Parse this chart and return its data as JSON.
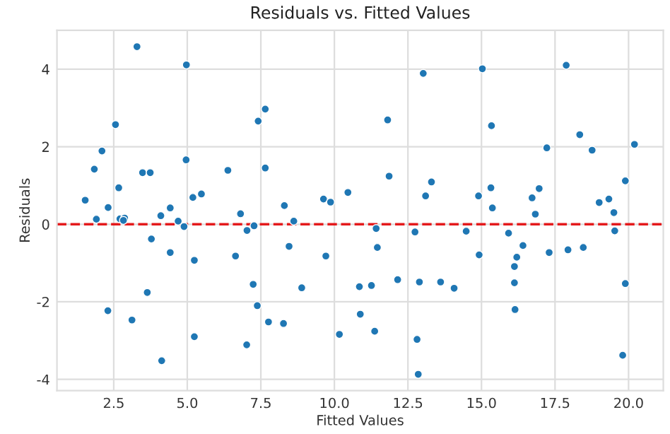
{
  "chart_data": {
    "type": "scatter",
    "title": "Residuals vs. Fitted Values",
    "xlabel": "Fitted Values",
    "ylabel": "Residuals",
    "xlim": [
      0.57,
      21.18
    ],
    "ylim": [
      -4.29,
      5.0
    ],
    "xticks": [
      {
        "value": 2.5,
        "label": "2.5"
      },
      {
        "value": 5,
        "label": "5.0"
      },
      {
        "value": 7.5,
        "label": "7.5"
      },
      {
        "value": 10,
        "label": "10.0"
      },
      {
        "value": 12.5,
        "label": "12.5"
      },
      {
        "value": 15,
        "label": "15.0"
      },
      {
        "value": 17.5,
        "label": "17.5"
      },
      {
        "value": 20,
        "label": "20.0"
      }
    ],
    "yticks": [
      -4,
      -2,
      0,
      2,
      4
    ],
    "grid": true,
    "marker": "circle",
    "ref_lines": [
      {
        "axis": "y",
        "value": 0,
        "label": null,
        "color": "#e41a1c",
        "line_style": "dashed"
      }
    ],
    "series": [
      {
        "color": "#1f77b4",
        "x": [
          1.53,
          1.84,
          1.91,
          2.1,
          2.31,
          2.3,
          2.56,
          2.67,
          2.71,
          2.87,
          2.83,
          3.12,
          3.29,
          3.48,
          3.74,
          3.64,
          3.78,
          4.1,
          4.13,
          4.42,
          4.42,
          4.69,
          4.89,
          4.97,
          4.96,
          5.19,
          5.48,
          5.24,
          5.24,
          6.38,
          6.64,
          6.81,
          7.03,
          7.02,
          7.27,
          7.24,
          7.41,
          7.65,
          7.65,
          7.38,
          7.76,
          8.27,
          8.3,
          8.46,
          8.62,
          8.89,
          9.63,
          9.87,
          9.71,
          10.17,
          10.46,
          10.85,
          10.88,
          11.26,
          11.37,
          11.42,
          11.46,
          11.81,
          11.86,
          12.15,
          12.74,
          12.81,
          12.85,
          12.89,
          13.02,
          13.1,
          13.3,
          13.61,
          14.07,
          14.48,
          14.9,
          14.92,
          15.03,
          15.32,
          15.34,
          15.37,
          15.92,
          16.12,
          16.12,
          16.14,
          16.2,
          16.41,
          16.72,
          16.83,
          16.96,
          17.22,
          17.3,
          17.88,
          17.94,
          18.34,
          18.46,
          18.76,
          19.0,
          19.33,
          19.5,
          19.53,
          19.89,
          19.89,
          19.8,
          20.2
        ],
        "values": [
          0.62,
          1.42,
          0.13,
          1.89,
          0.43,
          -2.23,
          2.57,
          0.94,
          0.14,
          0.16,
          0.1,
          -2.47,
          4.58,
          1.33,
          1.33,
          -1.76,
          -0.38,
          0.22,
          -3.52,
          0.42,
          -0.73,
          0.08,
          -0.06,
          4.11,
          1.66,
          0.69,
          0.78,
          -0.93,
          -2.9,
          1.39,
          -0.82,
          0.27,
          -0.16,
          -3.11,
          -0.04,
          -1.55,
          2.66,
          2.97,
          1.45,
          -2.1,
          -2.52,
          -2.56,
          0.48,
          -0.57,
          0.08,
          -1.64,
          0.65,
          0.57,
          -0.82,
          -2.84,
          0.82,
          -1.61,
          -2.32,
          -1.58,
          -2.76,
          -0.11,
          -0.6,
          2.69,
          1.24,
          -1.43,
          -0.2,
          -2.97,
          -3.87,
          -1.49,
          3.89,
          0.73,
          1.09,
          -1.49,
          -1.65,
          -0.18,
          0.73,
          -0.79,
          4.01,
          0.94,
          2.54,
          0.42,
          -0.23,
          -1.09,
          -1.51,
          -2.2,
          -0.85,
          -0.55,
          0.68,
          0.26,
          0.92,
          1.97,
          -0.73,
          4.1,
          -0.66,
          2.31,
          -0.6,
          1.91,
          0.56,
          0.65,
          0.3,
          -0.17,
          1.12,
          -1.53,
          -3.38,
          2.06
        ]
      }
    ]
  }
}
